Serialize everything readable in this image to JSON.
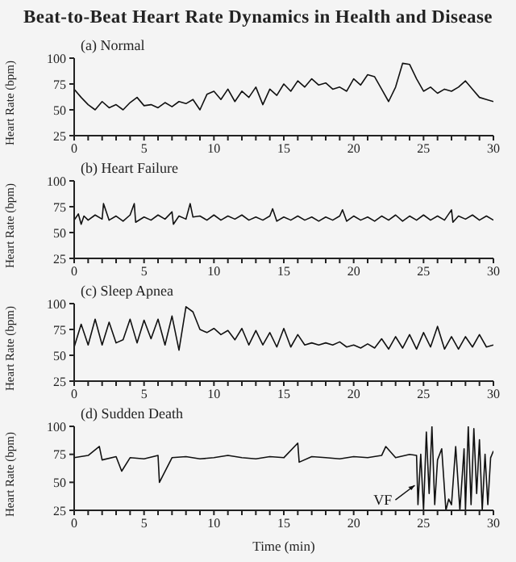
{
  "chart_data": [
    {
      "type": "line",
      "title": "Beat-to-Beat Heart Rate Dynamics in Health and Disease",
      "subtitle": "(a) Normal",
      "ylabel": "Heart Rate (bpm)",
      "xlim": [
        0,
        30
      ],
      "ylim": [
        25,
        100
      ],
      "yticks": [
        25,
        50,
        75,
        100
      ],
      "xticks": [
        0,
        {
          "value": 1,
          "label": null
        },
        {
          "value": 2,
          "label": null
        },
        {
          "value": 3,
          "label": null
        },
        {
          "value": 4,
          "label": null
        },
        5,
        {
          "value": 6,
          "label": null
        },
        {
          "value": 7,
          "label": null
        },
        {
          "value": 8,
          "label": null
        },
        {
          "value": 9,
          "label": null
        },
        10,
        {
          "value": 11,
          "label": null
        },
        {
          "value": 12,
          "label": null
        },
        {
          "value": 13,
          "label": null
        },
        {
          "value": 14,
          "label": null
        },
        15,
        {
          "value": 16,
          "label": null
        },
        {
          "value": 17,
          "label": null
        },
        {
          "value": 18,
          "label": null
        },
        {
          "value": 19,
          "label": null
        },
        20,
        {
          "value": 21,
          "label": null
        },
        {
          "value": 22,
          "label": null
        },
        {
          "value": 23,
          "label": null
        },
        {
          "value": 24,
          "label": null
        },
        25,
        {
          "value": 26,
          "label": null
        },
        {
          "value": 27,
          "label": null
        },
        {
          "value": 28,
          "label": null
        },
        {
          "value": 29,
          "label": null
        },
        30
      ],
      "x": [
        0,
        0.5,
        1,
        1.5,
        2,
        2.5,
        3,
        3.5,
        4,
        4.5,
        5,
        5.5,
        6,
        6.5,
        7,
        7.5,
        8,
        8.5,
        9,
        9.5,
        10,
        10.5,
        11,
        11.5,
        12,
        12.5,
        13,
        13.5,
        14,
        14.5,
        15,
        15.5,
        16,
        16.5,
        17,
        17.5,
        18,
        18.5,
        19,
        19.5,
        20,
        20.5,
        21,
        21.5,
        22,
        22.5,
        23,
        23.5,
        24,
        24.5,
        25,
        25.5,
        26,
        26.5,
        27,
        27.5,
        28,
        28.5,
        29,
        29.5,
        30
      ],
      "series": [
        {
          "color": "#111111",
          "values": [
            70,
            62,
            55,
            50,
            58,
            52,
            55,
            50,
            57,
            62,
            54,
            55,
            52,
            57,
            53,
            58,
            56,
            60,
            50,
            65,
            68,
            60,
            70,
            58,
            68,
            62,
            72,
            55,
            70,
            64,
            75,
            68,
            78,
            72,
            80,
            74,
            76,
            70,
            72,
            68,
            80,
            74,
            84,
            82,
            70,
            58,
            72,
            95,
            94,
            80,
            68,
            72,
            66,
            70,
            68,
            72,
            78,
            70,
            62,
            60,
            58
          ]
        }
      ]
    },
    {
      "type": "line",
      "subtitle": "(b) Heart Failure",
      "ylabel": "Heart Rate (bpm)",
      "xlim": [
        0,
        30
      ],
      "ylim": [
        25,
        100
      ],
      "yticks": [
        25,
        50,
        75,
        100
      ],
      "xticks": [
        0,
        {
          "value": 1,
          "label": null
        },
        {
          "value": 2,
          "label": null
        },
        {
          "value": 3,
          "label": null
        },
        {
          "value": 4,
          "label": null
        },
        5,
        {
          "value": 6,
          "label": null
        },
        {
          "value": 7,
          "label": null
        },
        {
          "value": 8,
          "label": null
        },
        {
          "value": 9,
          "label": null
        },
        10,
        {
          "value": 11,
          "label": null
        },
        {
          "value": 12,
          "label": null
        },
        {
          "value": 13,
          "label": null
        },
        {
          "value": 14,
          "label": null
        },
        15,
        {
          "value": 16,
          "label": null
        },
        {
          "value": 17,
          "label": null
        },
        {
          "value": 18,
          "label": null
        },
        {
          "value": 19,
          "label": null
        },
        20,
        {
          "value": 21,
          "label": null
        },
        {
          "value": 22,
          "label": null
        },
        {
          "value": 23,
          "label": null
        },
        {
          "value": 24,
          "label": null
        },
        25,
        {
          "value": 26,
          "label": null
        },
        {
          "value": 27,
          "label": null
        },
        {
          "value": 28,
          "label": null
        },
        {
          "value": 29,
          "label": null
        },
        30
      ],
      "x": [
        0,
        0.3,
        0.5,
        0.7,
        1,
        1.5,
        2,
        2.1,
        2.5,
        3,
        3.5,
        4,
        4.3,
        4.4,
        5,
        5.5,
        6,
        6.5,
        7,
        7.1,
        7.5,
        8,
        8.3,
        8.5,
        9,
        9.5,
        10,
        10.5,
        11,
        11.5,
        12,
        12.5,
        13,
        13.5,
        14,
        14.2,
        14.5,
        15,
        15.5,
        16,
        16.5,
        17,
        17.5,
        18,
        18.5,
        19,
        19.2,
        19.5,
        20,
        20.5,
        21,
        21.5,
        22,
        22.5,
        23,
        23.5,
        24,
        24.5,
        25,
        25.5,
        26,
        26.5,
        27,
        27.1,
        27.5,
        28,
        28.5,
        29,
        29.5,
        30
      ],
      "series": [
        {
          "color": "#111111",
          "values": [
            62,
            68,
            58,
            66,
            62,
            67,
            63,
            78,
            62,
            66,
            61,
            67,
            78,
            60,
            65,
            62,
            67,
            63,
            70,
            58,
            66,
            63,
            78,
            65,
            66,
            62,
            67,
            62,
            66,
            63,
            67,
            62,
            65,
            62,
            66,
            73,
            61,
            65,
            62,
            66,
            62,
            65,
            61,
            65,
            62,
            66,
            72,
            61,
            66,
            62,
            65,
            61,
            66,
            62,
            67,
            61,
            66,
            62,
            67,
            62,
            66,
            62,
            72,
            60,
            66,
            63,
            67,
            62,
            66,
            62
          ]
        }
      ]
    },
    {
      "type": "line",
      "subtitle": "(c) Sleep Apnea",
      "ylabel": "Heart Rate (bpm)",
      "xlim": [
        0,
        30
      ],
      "ylim": [
        25,
        100
      ],
      "yticks": [
        25,
        50,
        75,
        100
      ],
      "xticks": [
        0,
        {
          "value": 1,
          "label": null
        },
        {
          "value": 2,
          "label": null
        },
        {
          "value": 3,
          "label": null
        },
        {
          "value": 4,
          "label": null
        },
        5,
        {
          "value": 6,
          "label": null
        },
        {
          "value": 7,
          "label": null
        },
        {
          "value": 8,
          "label": null
        },
        {
          "value": 9,
          "label": null
        },
        10,
        {
          "value": 11,
          "label": null
        },
        {
          "value": 12,
          "label": null
        },
        {
          "value": 13,
          "label": null
        },
        {
          "value": 14,
          "label": null
        },
        15,
        {
          "value": 16,
          "label": null
        },
        {
          "value": 17,
          "label": null
        },
        {
          "value": 18,
          "label": null
        },
        {
          "value": 19,
          "label": null
        },
        20,
        {
          "value": 21,
          "label": null
        },
        {
          "value": 22,
          "label": null
        },
        {
          "value": 23,
          "label": null
        },
        {
          "value": 24,
          "label": null
        },
        25,
        {
          "value": 26,
          "label": null
        },
        {
          "value": 27,
          "label": null
        },
        {
          "value": 28,
          "label": null
        },
        {
          "value": 29,
          "label": null
        },
        30
      ],
      "x": [
        0,
        0.5,
        1,
        1.5,
        2,
        2.5,
        3,
        3.5,
        4,
        4.5,
        5,
        5.5,
        6,
        6.5,
        7,
        7.5,
        8,
        8.5,
        9,
        9.5,
        10,
        10.5,
        11,
        11.5,
        12,
        12.5,
        13,
        13.5,
        14,
        14.5,
        15,
        15.5,
        16,
        16.5,
        17,
        17.5,
        18,
        18.5,
        19,
        19.5,
        20,
        20.5,
        21,
        21.5,
        22,
        22.5,
        23,
        23.5,
        24,
        24.5,
        25,
        25.5,
        26,
        26.5,
        27,
        27.5,
        28,
        28.5,
        29,
        29.5,
        30
      ],
      "series": [
        {
          "color": "#111111",
          "values": [
            58,
            80,
            60,
            85,
            60,
            82,
            62,
            65,
            85,
            62,
            84,
            66,
            85,
            60,
            88,
            55,
            97,
            92,
            75,
            72,
            76,
            70,
            74,
            65,
            76,
            60,
            74,
            60,
            72,
            58,
            76,
            58,
            70,
            60,
            62,
            60,
            62,
            60,
            63,
            58,
            60,
            57,
            61,
            57,
            66,
            56,
            68,
            57,
            70,
            56,
            72,
            58,
            78,
            56,
            68,
            56,
            68,
            58,
            70,
            58,
            60
          ]
        }
      ]
    },
    {
      "type": "line",
      "subtitle": "(d) Sudden Death",
      "xlabel": "Time (min)",
      "ylabel": "Heart Rate (bpm)",
      "xlim": [
        0,
        30
      ],
      "ylim": [
        25,
        100
      ],
      "yticks": [
        25,
        50,
        75,
        100
      ],
      "xticks": [
        0,
        {
          "value": 1,
          "label": null
        },
        {
          "value": 2,
          "label": null
        },
        {
          "value": 3,
          "label": null
        },
        {
          "value": 4,
          "label": null
        },
        5,
        {
          "value": 6,
          "label": null
        },
        {
          "value": 7,
          "label": null
        },
        {
          "value": 8,
          "label": null
        },
        {
          "value": 9,
          "label": null
        },
        10,
        {
          "value": 11,
          "label": null
        },
        {
          "value": 12,
          "label": null
        },
        {
          "value": 13,
          "label": null
        },
        {
          "value": 14,
          "label": null
        },
        15,
        {
          "value": 16,
          "label": null
        },
        {
          "value": 17,
          "label": null
        },
        {
          "value": 18,
          "label": null
        },
        {
          "value": 19,
          "label": null
        },
        20,
        {
          "value": 21,
          "label": null
        },
        {
          "value": 22,
          "label": null
        },
        {
          "value": 23,
          "label": null
        },
        {
          "value": 24,
          "label": null
        },
        25,
        {
          "value": 26,
          "label": null
        },
        {
          "value": 27,
          "label": null
        },
        {
          "value": 28,
          "label": null
        },
        {
          "value": 29,
          "label": null
        },
        30
      ],
      "annotations": [
        {
          "text": "VF",
          "x": 24.6,
          "y": 30
        }
      ],
      "x": [
        0,
        1,
        1.8,
        2,
        3,
        3.4,
        4,
        5,
        6,
        6.1,
        7,
        8,
        9,
        10,
        11,
        12,
        13,
        14,
        15,
        16,
        16.1,
        17,
        18,
        19,
        20,
        21,
        22,
        22.3,
        23,
        24,
        24.5,
        24.6,
        24.8,
        25,
        25.2,
        25.4,
        25.6,
        25.8,
        26,
        26.3,
        26.6,
        26.8,
        27,
        27.3,
        27.6,
        27.9,
        28,
        28.2,
        28.4,
        28.6,
        28.8,
        29,
        29.2,
        29.4,
        29.6,
        29.8,
        30
      ],
      "series": [
        {
          "color": "#111111",
          "values": [
            72,
            74,
            82,
            70,
            73,
            60,
            72,
            71,
            74,
            50,
            72,
            73,
            71,
            72,
            74,
            72,
            71,
            73,
            72,
            85,
            68,
            73,
            72,
            71,
            73,
            72,
            74,
            82,
            72,
            75,
            74,
            30,
            75,
            25,
            95,
            40,
            100,
            30,
            70,
            80,
            25,
            35,
            30,
            82,
            25,
            80,
            25,
            100,
            30,
            98,
            40,
            88,
            25,
            75,
            30,
            72,
            78
          ]
        }
      ]
    }
  ]
}
